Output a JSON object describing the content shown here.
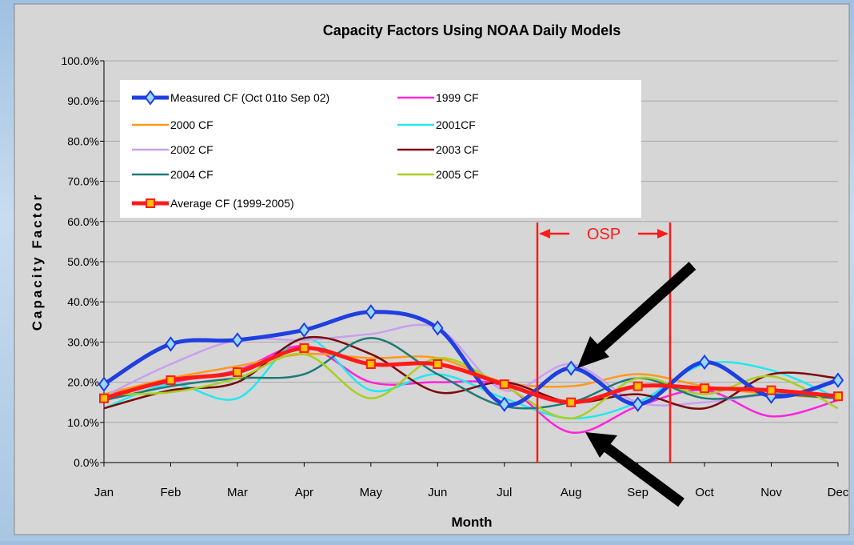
{
  "chart_data": {
    "type": "line",
    "title": "Capacity Factors Using NOAA Daily Models",
    "x_label": "Month",
    "y_label": "Capacity Factor",
    "categories": [
      "Jan",
      "Feb",
      "Mar",
      "Apr",
      "May",
      "Jun",
      "Jul",
      "Aug",
      "Sep",
      "Oct",
      "Nov",
      "Dec"
    ],
    "ylim": [
      0,
      100
    ],
    "yticks": [
      {
        "value": 0,
        "label": "0.0%"
      },
      {
        "value": 10,
        "label": "10.0%"
      },
      {
        "value": 20,
        "label": "20.0%"
      },
      {
        "value": 30,
        "label": "30.0%"
      },
      {
        "value": 40,
        "label": "40.0%"
      },
      {
        "value": 50,
        "label": "50.0%"
      },
      {
        "value": 60,
        "label": "60.0%"
      },
      {
        "value": 70,
        "label": "70.0%"
      },
      {
        "value": 80,
        "label": "80.0%"
      },
      {
        "value": 90,
        "label": "90.0%"
      },
      {
        "value": 100,
        "label": "100.0%"
      }
    ],
    "grid": true,
    "legend": "top-left",
    "smooth": true,
    "annotations": [
      "OSP"
    ],
    "series": [
      {
        "name": "Measured CF (Oct 01to Sep 02)",
        "color": "#1f3fe0",
        "marker": "diamond",
        "values": [
          19.5,
          29.5,
          30.5,
          33,
          37.5,
          33.5,
          14.5,
          23.5,
          14.5,
          25,
          16.5,
          20.5
        ]
      },
      {
        "name": "1999 CF",
        "color": "#ff22dd",
        "values": [
          17,
          20,
          23,
          29,
          20,
          20,
          19,
          7.5,
          14,
          18,
          11.5,
          15.5
        ]
      },
      {
        "name": "2000 CF",
        "color": "#ff9a1a",
        "values": [
          17,
          21,
          24,
          27,
          26,
          26,
          20,
          19,
          22,
          19,
          17,
          16
        ]
      },
      {
        "name": "2001CF",
        "color": "#22e8f0",
        "values": [
          13.5,
          19.5,
          16,
          31,
          18,
          22,
          16,
          11,
          15,
          24.5,
          23,
          16
        ]
      },
      {
        "name": "2002 CF",
        "color": "#c8a0f0",
        "values": [
          16.5,
          24.5,
          30.5,
          30.5,
          32,
          33.5,
          18,
          24.5,
          15,
          15,
          17,
          17
        ]
      },
      {
        "name": "2003 CF",
        "color": "#7a0a0a",
        "values": [
          13.5,
          18,
          20,
          31,
          27,
          17.5,
          20,
          15,
          17,
          13.5,
          22,
          21
        ]
      },
      {
        "name": "2004 CF",
        "color": "#1e7a78",
        "values": [
          15.5,
          19,
          21,
          22,
          31,
          22,
          14,
          15,
          21,
          16,
          17,
          16
        ]
      },
      {
        "name": "2005 CF",
        "color": "#a8d020",
        "values": [
          17,
          17.5,
          21,
          27,
          16,
          26,
          19,
          11,
          21,
          17,
          21.5,
          13.5
        ]
      },
      {
        "name": "Average CF (1999-2005)",
        "color": "#ff1a1a",
        "marker": "square",
        "values": [
          16,
          20.5,
          22.5,
          28.5,
          24.5,
          24.5,
          19.5,
          15,
          19,
          18.5,
          18,
          16.5
        ]
      }
    ]
  }
}
